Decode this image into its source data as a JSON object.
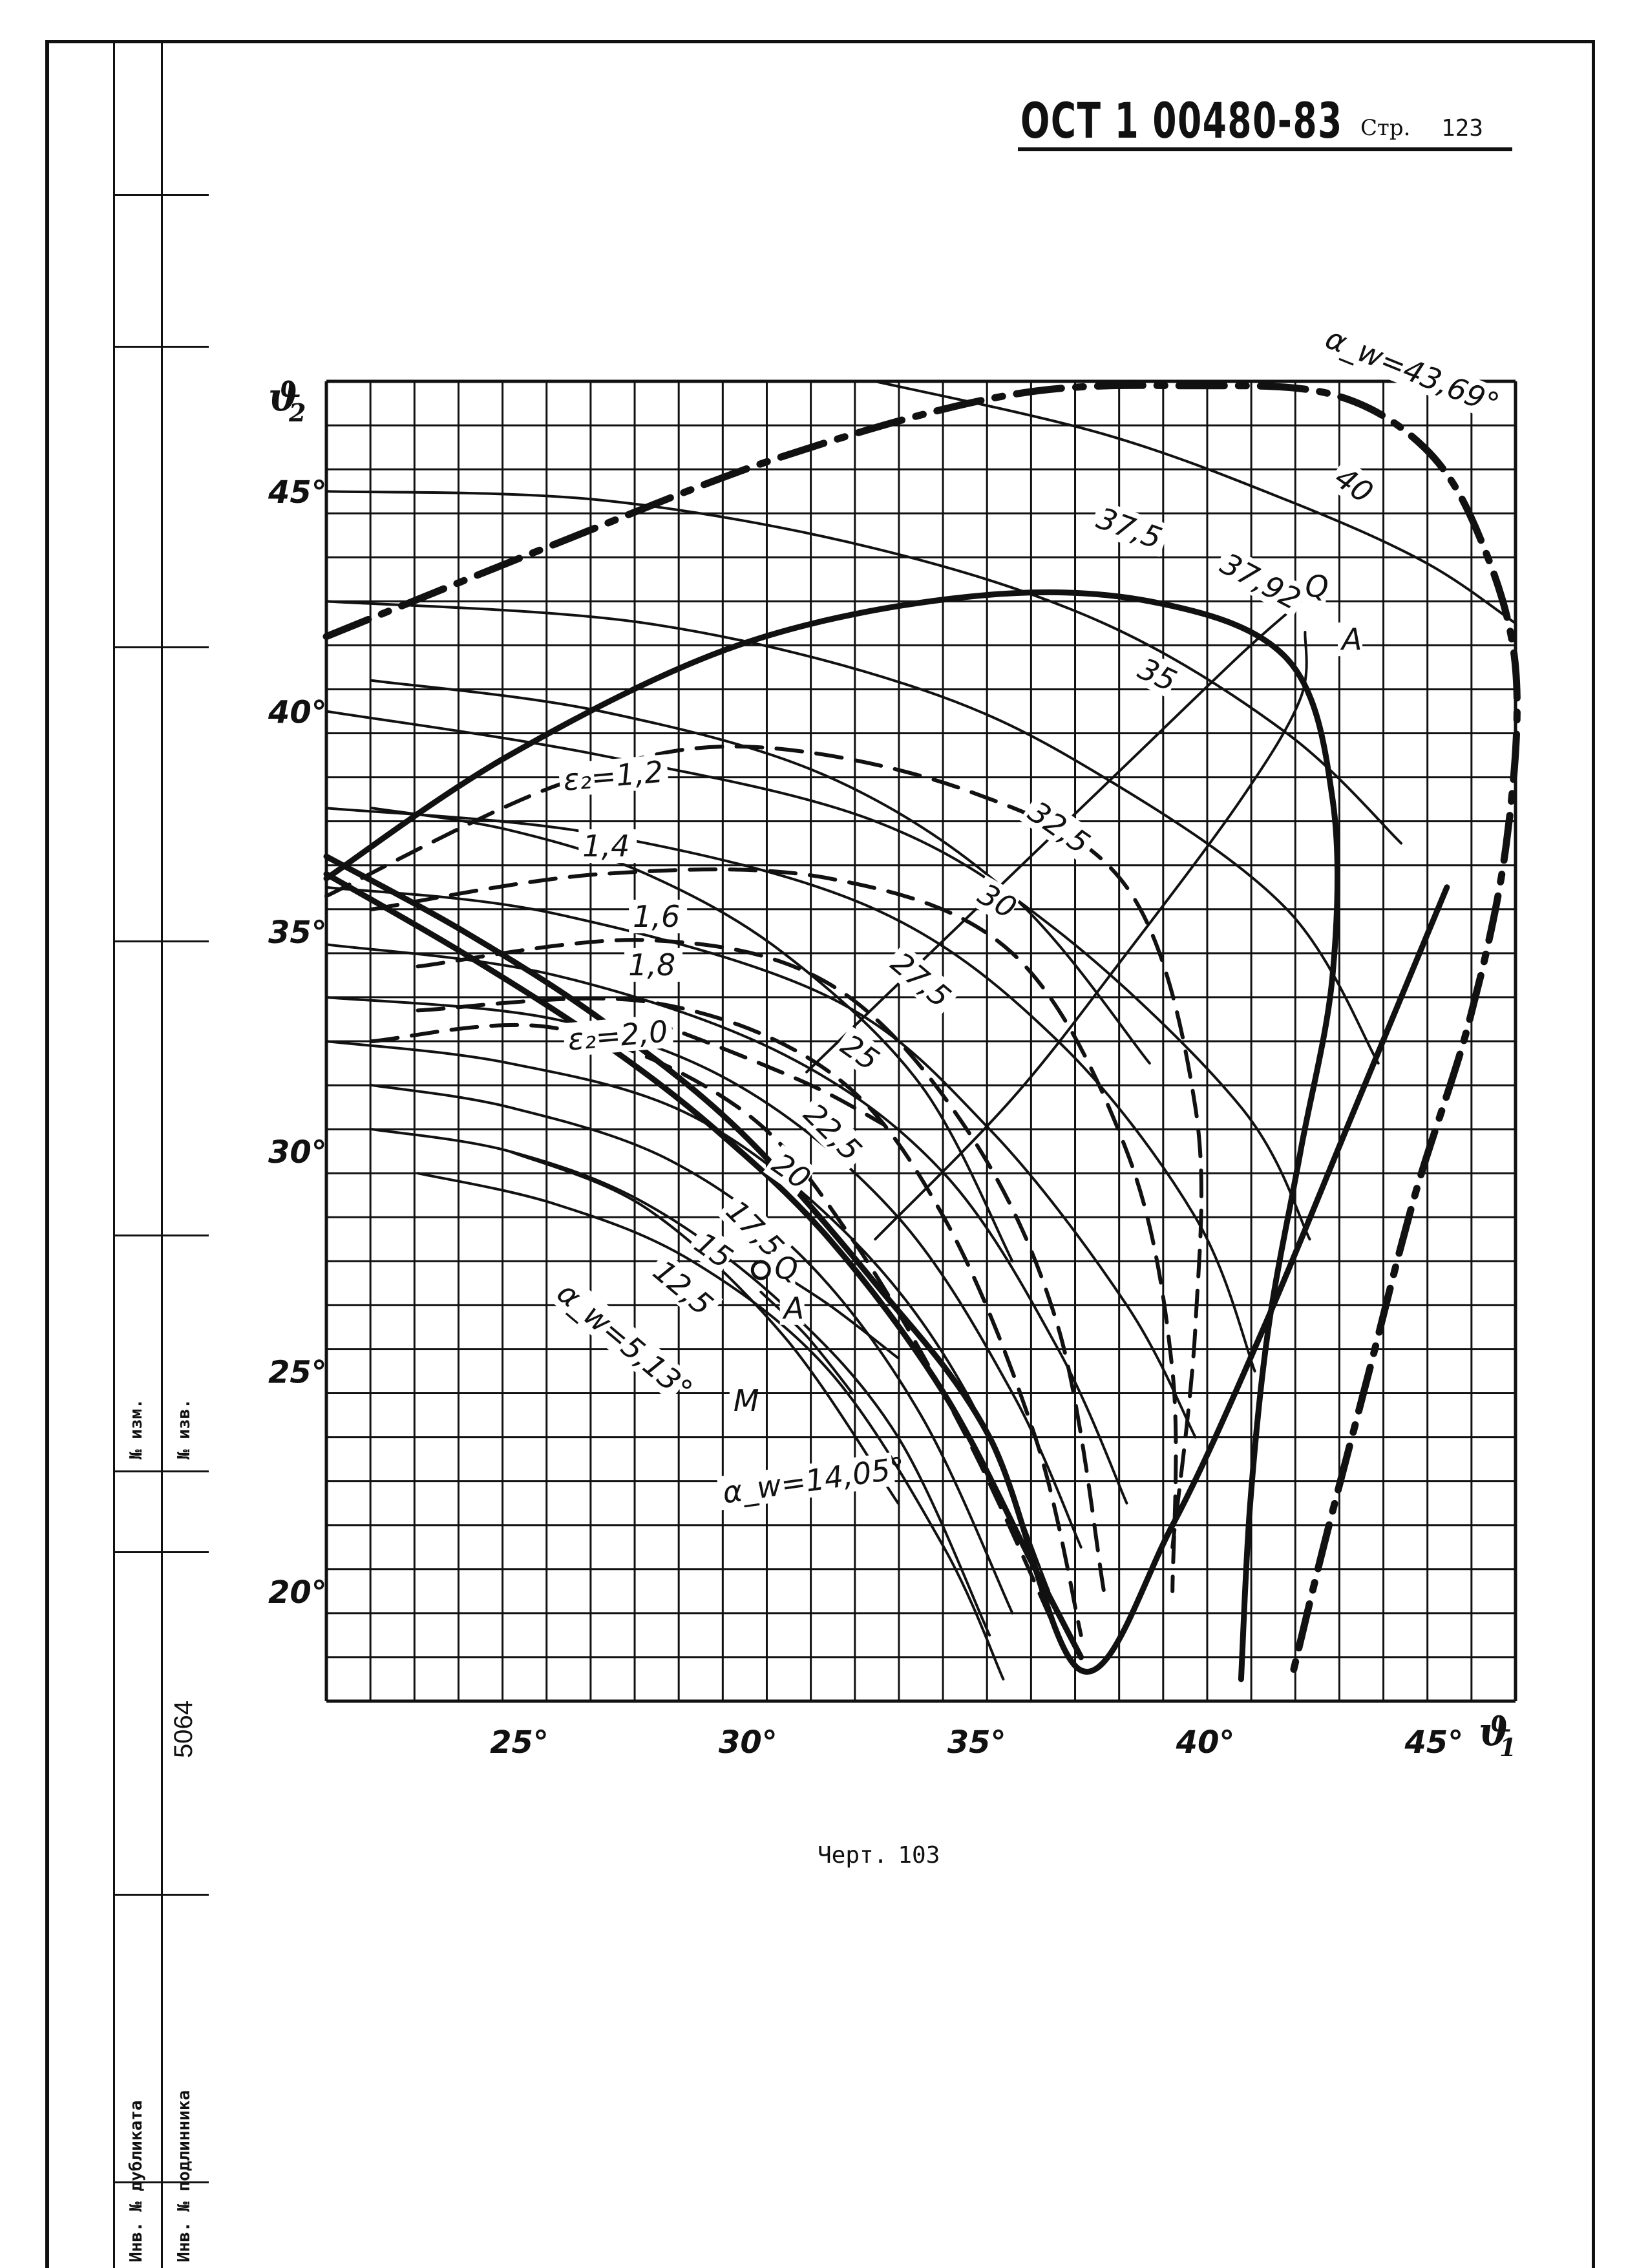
{
  "header": {
    "standard": "ОСТ 1 00480-83",
    "page_label": "Стр.",
    "page_number": "123"
  },
  "caption": {
    "label": "Черт.",
    "number": "103"
  },
  "margin_stamp": {
    "change_no": "№ изм.",
    "notice_no": "№ изв.",
    "inventory_no": "5064",
    "duplicate_inv": "Инв. № дубликата",
    "original_inv": "Инв. № подлинника"
  },
  "chart_data": {
    "type": "line",
    "xlabel": "ϑ",
    "xlabel_sub": "1",
    "ylabel": "ϑ",
    "ylabel_sub": "2",
    "x_ticks": [
      "25°",
      "30°",
      "35°",
      "40°",
      "45°"
    ],
    "y_ticks": [
      "45°",
      "40°",
      "35°",
      "30°",
      "25°",
      "20°"
    ],
    "xlim": [
      21,
      47
    ],
    "ylim": [
      17.5,
      47.5
    ],
    "grid": true,
    "series": [
      {
        "name": "α_w=43,69°",
        "style": "dash-dot",
        "points": [
          [
            21,
            41.7
          ],
          [
            26,
            43.8
          ],
          [
            31,
            45.8
          ],
          [
            36,
            47.2
          ],
          [
            40,
            47.4
          ],
          [
            43,
            47.2
          ],
          [
            45,
            46
          ],
          [
            46.2,
            44
          ],
          [
            47,
            41
          ],
          [
            46.8,
            37
          ],
          [
            46,
            33
          ],
          [
            44.8,
            29
          ],
          [
            43.8,
            25
          ],
          [
            42.8,
            21
          ],
          [
            42.1,
            18
          ]
        ]
      },
      {
        "name": "37,92",
        "style": "bold",
        "points": [
          [
            21,
            36.2
          ],
          [
            25,
            39
          ],
          [
            30,
            41.5
          ],
          [
            35,
            42.6
          ],
          [
            39,
            42.5
          ],
          [
            42,
            41.2
          ],
          [
            43,
            38
          ],
          [
            43,
            34
          ],
          [
            42.3,
            30
          ],
          [
            41.6,
            26
          ],
          [
            41.2,
            22
          ],
          [
            41,
            18
          ]
        ]
      },
      {
        "name": "ε₂=1,2",
        "style": "dash",
        "points": [
          [
            21,
            35.8
          ],
          [
            26,
            38.3
          ],
          [
            30,
            39.2
          ],
          [
            35,
            38.2
          ],
          [
            38.5,
            36
          ],
          [
            40,
            31
          ],
          [
            40,
            26
          ],
          [
            39.5,
            21
          ]
        ]
      },
      {
        "name": "1,4",
        "style": "dash",
        "points": [
          [
            22,
            35.5
          ],
          [
            27,
            36.3
          ],
          [
            32,
            36.2
          ],
          [
            36,
            34.5
          ],
          [
            38.5,
            30
          ],
          [
            39.5,
            25
          ],
          [
            39.5,
            20
          ]
        ]
      },
      {
        "name": "1,6",
        "style": "dash",
        "points": [
          [
            23,
            34.2
          ],
          [
            28,
            34.8
          ],
          [
            32,
            33.8
          ],
          [
            35,
            30.5
          ],
          [
            37,
            26
          ],
          [
            38,
            20
          ]
        ]
      },
      {
        "name": "1,8",
        "style": "dash",
        "points": [
          [
            23,
            33.2
          ],
          [
            28,
            33.4
          ],
          [
            32,
            31.8
          ],
          [
            34.5,
            28.5
          ],
          [
            36.5,
            23.5
          ],
          [
            37.5,
            19
          ]
        ]
      },
      {
        "name": "ε₂=2,0",
        "style": "dash",
        "points": [
          [
            22,
            32.5
          ],
          [
            26,
            32.8
          ],
          [
            30,
            31
          ],
          [
            32.5,
            28
          ],
          [
            35,
            23.5
          ],
          [
            37,
            19
          ]
        ]
      },
      {
        "name": "α_w=14,05°",
        "style": "bold",
        "points": [
          [
            21,
            36.7
          ],
          [
            24,
            35
          ],
          [
            27,
            33
          ],
          [
            30,
            30.5
          ],
          [
            33,
            27
          ],
          [
            35.5,
            23.5
          ],
          [
            37.5,
            18.2
          ],
          [
            39.5,
            21.5
          ],
          [
            41.5,
            26
          ],
          [
            43.5,
            31
          ],
          [
            45.5,
            36
          ]
        ]
      },
      {
        "name": "α_w=5,13°",
        "style": "bold",
        "points": [
          [
            21,
            36.3
          ],
          [
            24,
            34.5
          ],
          [
            27,
            32.5
          ],
          [
            29.5,
            30.5
          ],
          [
            32,
            28
          ],
          [
            34.5,
            24.5
          ],
          [
            36.5,
            20.5
          ],
          [
            37.5,
            18.5
          ]
        ]
      },
      {
        "name": "40",
        "style": "thin",
        "points": [
          [
            33,
            47.5
          ],
          [
            38,
            46.3
          ],
          [
            42,
            44.8
          ],
          [
            45,
            43.4
          ],
          [
            47,
            42
          ]
        ]
      },
      {
        "name": "37,5",
        "style": "thin",
        "points": [
          [
            21,
            45
          ],
          [
            27,
            44.8
          ],
          [
            33,
            43.7
          ],
          [
            38,
            42
          ],
          [
            42,
            39.5
          ],
          [
            44.5,
            37
          ]
        ]
      },
      {
        "name": "35",
        "style": "thin",
        "points": [
          [
            21,
            42.5
          ],
          [
            28,
            42
          ],
          [
            34,
            40.5
          ],
          [
            38,
            38.5
          ],
          [
            42,
            35.5
          ],
          [
            44,
            32
          ]
        ]
      },
      {
        "name": "32,5",
        "style": "thin",
        "points": [
          [
            21,
            40
          ],
          [
            27,
            39
          ],
          [
            33,
            37.5
          ],
          [
            37,
            35
          ],
          [
            41,
            31
          ],
          [
            42.5,
            28
          ]
        ]
      },
      {
        "name": "30",
        "style": "thin",
        "points": [
          [
            21,
            37.8
          ],
          [
            27,
            37.2
          ],
          [
            33,
            35.5
          ],
          [
            37,
            32.5
          ],
          [
            40,
            28.5
          ],
          [
            41.3,
            25
          ]
        ]
      },
      {
        "name": "27,5",
        "style": "thin",
        "points": [
          [
            21,
            36
          ],
          [
            26,
            35.4
          ],
          [
            32,
            33.5
          ],
          [
            35.5,
            30.5
          ],
          [
            38.5,
            26.5
          ],
          [
            40,
            23.5
          ]
        ]
      },
      {
        "name": "25",
        "style": "thin",
        "points": [
          [
            21,
            34.7
          ],
          [
            26,
            34
          ],
          [
            31,
            32.2
          ],
          [
            34.5,
            29.5
          ],
          [
            37,
            25.5
          ],
          [
            38.5,
            22
          ]
        ]
      },
      {
        "name": "22,5",
        "style": "thin",
        "points": [
          [
            21,
            33.5
          ],
          [
            26,
            33
          ],
          [
            30,
            31.5
          ],
          [
            33.5,
            28.5
          ],
          [
            36,
            24.5
          ],
          [
            37.5,
            21
          ]
        ]
      },
      {
        "name": "20",
        "style": "thin",
        "points": [
          [
            21,
            32.5
          ],
          [
            25,
            32
          ],
          [
            29,
            30.8
          ],
          [
            32.5,
            28
          ],
          [
            35,
            24.5
          ],
          [
            36.8,
            20
          ]
        ]
      },
      {
        "name": "17,5",
        "style": "thin",
        "points": [
          [
            22,
            31.5
          ],
          [
            25,
            31
          ],
          [
            28.5,
            29.8
          ],
          [
            31.5,
            27.5
          ],
          [
            34,
            24
          ],
          [
            36,
            19.5
          ]
        ]
      },
      {
        "name": "15",
        "style": "thin",
        "points": [
          [
            22,
            30.5
          ],
          [
            25,
            30
          ],
          [
            28,
            28.8
          ],
          [
            31,
            26.5
          ],
          [
            33.5,
            23.5
          ],
          [
            35.5,
            19
          ]
        ]
      },
      {
        "name": "12,5",
        "style": "thin",
        "points": [
          [
            23,
            29.5
          ],
          [
            26,
            28.8
          ],
          [
            29,
            27.5
          ],
          [
            32,
            25
          ],
          [
            34.5,
            21
          ],
          [
            35.8,
            18
          ]
        ]
      },
      {
        "name": "",
        "style": "thin",
        "points": [
          [
            22,
            37.8
          ],
          [
            25,
            37.3
          ],
          [
            28,
            36.3
          ],
          [
            31,
            34.5
          ],
          [
            34,
            31.5
          ],
          [
            36,
            27.5
          ]
        ]
      },
      {
        "name": "",
        "style": "thin",
        "points": [
          [
            22,
            40.7
          ],
          [
            27,
            40
          ],
          [
            32,
            38.5
          ],
          [
            36,
            35.8
          ],
          [
            39,
            32
          ]
        ]
      },
      {
        "name": "",
        "style": "thin",
        "points": [
          [
            25,
            30
          ],
          [
            28,
            28.7
          ],
          [
            31,
            25.8
          ],
          [
            33.5,
            22
          ]
        ]
      },
      {
        "name": "",
        "style": "thin",
        "points": [
          [
            30.5,
            27.5
          ],
          [
            32,
            26.5
          ],
          [
            33.5,
            25.3
          ]
        ]
      },
      {
        "name": "",
        "style": "thin",
        "points": [
          [
            30.5,
            26.8
          ],
          [
            31.5,
            25.8
          ],
          [
            32.5,
            24.5
          ]
        ]
      },
      {
        "name": "",
        "style": "thin",
        "points": [
          [
            31.5,
            31.8
          ],
          [
            33.5,
            33.8
          ],
          [
            36,
            36.3
          ],
          [
            38.5,
            38.8
          ],
          [
            41,
            41.3
          ],
          [
            42.2,
            42.4
          ]
        ]
      },
      {
        "name": "",
        "style": "thin",
        "points": [
          [
            33,
            28
          ],
          [
            36,
            31.2
          ],
          [
            38.5,
            34.5
          ],
          [
            41,
            38
          ],
          [
            42.3,
            40.3
          ],
          [
            42.4,
            41.8
          ]
        ]
      },
      {
        "name": "",
        "style": "dash",
        "points": [
          [
            28,
            33
          ],
          [
            30,
            32.2
          ],
          [
            31.8,
            31.4
          ],
          [
            33.2,
            30.6
          ]
        ]
      }
    ],
    "curve_labels": [
      {
        "text": "40",
        "x": 43,
        "y": 45.2,
        "rotate": 35
      },
      {
        "text": "37,5",
        "x": 37.8,
        "y": 44.2,
        "rotate": 20
      },
      {
        "text": "37,92",
        "x": 40.5,
        "y": 43.2,
        "rotate": 28
      },
      {
        "text": "Q",
        "x": 42.4,
        "y": 42.6,
        "rotate": 0
      },
      {
        "text": "A",
        "x": 43.2,
        "y": 41.4,
        "rotate": 0
      },
      {
        "text": "35",
        "x": 38.7,
        "y": 40.8,
        "rotate": 25
      },
      {
        "text": "32,5",
        "x": 36.3,
        "y": 37.6,
        "rotate": 35
      },
      {
        "text": "30",
        "x": 35.2,
        "y": 35.7,
        "rotate": 30
      },
      {
        "text": "27,5",
        "x": 33.3,
        "y": 34.2,
        "rotate": 40
      },
      {
        "text": "25",
        "x": 32.2,
        "y": 32.3,
        "rotate": 35
      },
      {
        "text": "22,5",
        "x": 31.4,
        "y": 30.8,
        "rotate": 45
      },
      {
        "text": "20",
        "x": 30.7,
        "y": 29.6,
        "rotate": 35
      },
      {
        "text": "17,5",
        "x": 29.7,
        "y": 28.6,
        "rotate": 45
      },
      {
        "text": "15",
        "x": 29,
        "y": 27.8,
        "rotate": 35
      },
      {
        "text": "12,5",
        "x": 28.1,
        "y": 27.2,
        "rotate": 40
      },
      {
        "text": "Q",
        "x": 30.8,
        "y": 27.1,
        "rotate": 0
      },
      {
        "text": "A",
        "x": 31,
        "y": 26.2,
        "rotate": 0
      },
      {
        "text": "M",
        "x": 29.9,
        "y": 24.1,
        "rotate": 0
      },
      {
        "text": "ε₂=1,2",
        "x": 26.2,
        "y": 38.2,
        "rotate": -5
      },
      {
        "text": "1,4",
        "x": 26.6,
        "y": 36.7,
        "rotate": 0
      },
      {
        "text": "1,6",
        "x": 27.7,
        "y": 35.1,
        "rotate": 0
      },
      {
        "text": "1,8",
        "x": 27.6,
        "y": 34.0,
        "rotate": 0
      },
      {
        "text": "ε₂=2,0",
        "x": 26.3,
        "y": 32.3,
        "rotate": -5
      },
      {
        "text": "α_w=5,13°",
        "x": 26,
        "y": 26.7,
        "rotate": 40
      },
      {
        "text": "α_w=14,05°",
        "x": 29.7,
        "y": 22.0,
        "rotate": -8
      },
      {
        "text": "α_w=43,69°",
        "x": 42.8,
        "y": 48.3,
        "rotate": 22
      }
    ],
    "markers": [
      {
        "name": "M",
        "x": 30.5,
        "y": 27.3
      }
    ]
  }
}
